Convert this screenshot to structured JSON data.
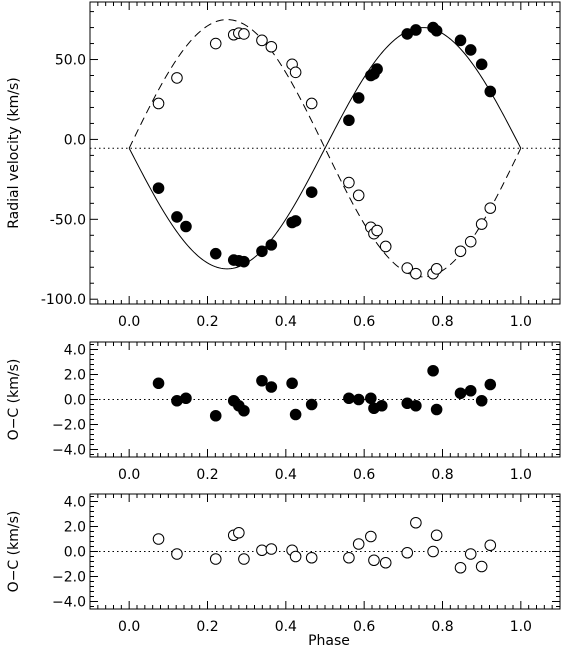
{
  "chart_data": [
    {
      "type": "line",
      "ylabel": "Radial velocity  (km/s)",
      "xlim": [
        -0.1,
        1.1
      ],
      "ylim": [
        -103,
        86
      ],
      "xticks": [
        "0.0",
        "0.2",
        "0.4",
        "0.6",
        "0.8",
        "1.0"
      ],
      "yticks": [
        "-100.0",
        "-50.0",
        "0.0",
        "50.0"
      ],
      "systemic_velocity": -5.5,
      "curves": [
        {
          "style": "solid",
          "gamma": -5.5,
          "K": 75.5,
          "phase_shift": 0.0
        },
        {
          "style": "dashed",
          "gamma": -5.5,
          "K": 80.5,
          "phase_shift": 0.5
        }
      ],
      "series": [
        {
          "marker": "filled-circle",
          "x": [
            0.075,
            0.122,
            0.145,
            0.221,
            0.267,
            0.28,
            0.293,
            0.339,
            0.363,
            0.416,
            0.425,
            0.466,
            0.561,
            0.586,
            0.617,
            0.625,
            0.633,
            0.71,
            0.732,
            0.776,
            0.785,
            0.846,
            0.872,
            0.9,
            0.922
          ],
          "y": [
            -30.5,
            -48.5,
            -54.5,
            -71.5,
            -75.5,
            -76,
            -76.5,
            -70,
            -66,
            -52,
            -51,
            -33,
            12,
            26,
            40,
            41,
            44,
            66,
            68.5,
            70,
            68,
            62,
            56,
            47,
            30
          ]
        },
        {
          "marker": "open-circle",
          "x": [
            0.075,
            0.122,
            0.221,
            0.267,
            0.28,
            0.293,
            0.339,
            0.363,
            0.416,
            0.425,
            0.466,
            0.561,
            0.586,
            0.617,
            0.625,
            0.633,
            0.655,
            0.71,
            0.732,
            0.776,
            0.785,
            0.846,
            0.872,
            0.9,
            0.922
          ],
          "y": [
            22.5,
            38.5,
            60,
            65.5,
            66.5,
            66,
            62,
            58,
            47,
            42,
            22.5,
            -27,
            -35,
            -55,
            -59,
            -57,
            -67,
            -80.5,
            -84,
            -84,
            -81,
            -70,
            -64,
            -53,
            -43
          ]
        }
      ]
    },
    {
      "type": "scatter",
      "ylabel": "O−C  (km/s)",
      "xlim": [
        -0.1,
        1.1
      ],
      "ylim": [
        -4.6,
        4.6
      ],
      "xticks": [
        "0.0",
        "0.2",
        "0.4",
        "0.6",
        "0.8",
        "1.0"
      ],
      "yticks": [
        "−4.0",
        "−2.0",
        "0.0",
        "2.0",
        "4.0"
      ],
      "series": [
        {
          "marker": "filled-circle",
          "x": [
            0.075,
            0.122,
            0.145,
            0.221,
            0.267,
            0.28,
            0.293,
            0.339,
            0.363,
            0.416,
            0.425,
            0.466,
            0.561,
            0.586,
            0.617,
            0.625,
            0.645,
            0.71,
            0.732,
            0.776,
            0.785,
            0.846,
            0.872,
            0.9,
            0.922
          ],
          "y": [
            1.3,
            -0.1,
            0.1,
            -1.3,
            -0.1,
            -0.5,
            -0.9,
            1.5,
            1.0,
            1.3,
            -1.2,
            -0.4,
            0.1,
            0.0,
            0.1,
            -0.7,
            -0.5,
            -0.3,
            -0.5,
            2.3,
            -0.8,
            0.5,
            0.7,
            -0.1,
            1.2
          ]
        }
      ]
    },
    {
      "type": "scatter",
      "xlabel": "Phase",
      "ylabel": "O−C  (km/s)",
      "xlim": [
        -0.1,
        1.1
      ],
      "ylim": [
        -4.6,
        4.6
      ],
      "xticks": [
        "0.0",
        "0.2",
        "0.4",
        "0.6",
        "0.8",
        "1.0"
      ],
      "yticks": [
        "−4.0",
        "−2.0",
        "0.0",
        "2.0",
        "4.0"
      ],
      "series": [
        {
          "marker": "open-circle",
          "x": [
            0.075,
            0.122,
            0.221,
            0.267,
            0.28,
            0.293,
            0.339,
            0.363,
            0.416,
            0.425,
            0.466,
            0.561,
            0.586,
            0.617,
            0.625,
            0.655,
            0.71,
            0.732,
            0.776,
            0.785,
            0.846,
            0.872,
            0.9,
            0.922
          ],
          "y": [
            1.0,
            -0.2,
            -0.6,
            1.3,
            1.5,
            -0.6,
            0.1,
            0.2,
            0.1,
            -0.4,
            -0.5,
            -0.5,
            0.6,
            1.2,
            -0.7,
            -0.9,
            -0.1,
            2.3,
            0.0,
            1.3,
            -1.3,
            -0.2,
            -1.2,
            0.5
          ]
        }
      ]
    }
  ]
}
